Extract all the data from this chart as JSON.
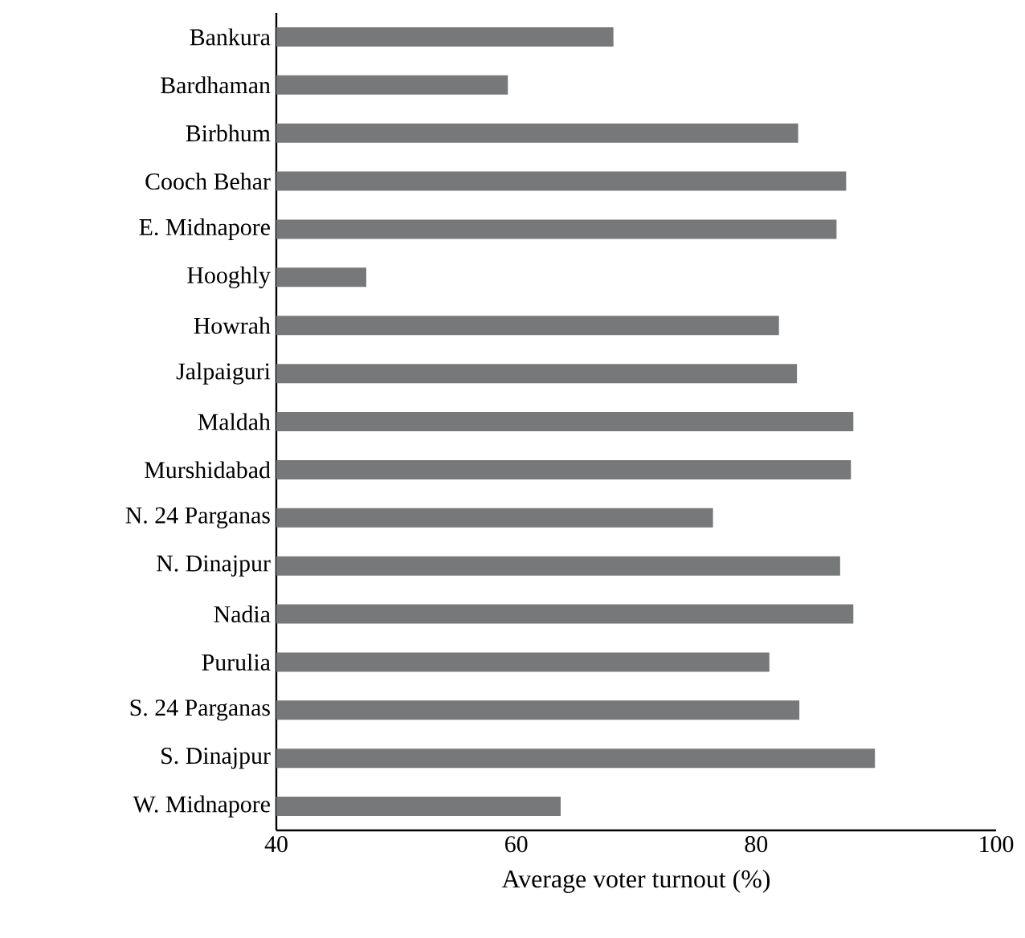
{
  "chart_data": {
    "type": "bar",
    "orientation": "horizontal",
    "xlabel": "Average voter turnout (%)",
    "categories": [
      "Bankura",
      "Bardhaman",
      "Birbhum",
      "Cooch Behar",
      "E. Midnapore",
      "Hooghly",
      "Howrah",
      "Jalpaiguri",
      "Maldah",
      "Murshidabad",
      "N. 24 Parganas",
      "N. Dinajpur",
      "Nadia",
      "Purulia",
      "S. 24 Parganas",
      "S. Dinajpur",
      "W. Midnapore"
    ],
    "values": [
      68.1,
      59.3,
      83.5,
      87.5,
      86.7,
      47.5,
      81.9,
      83.4,
      88.1,
      87.9,
      76.4,
      87.0,
      88.1,
      81.1,
      83.6,
      89.9,
      63.7
    ],
    "color": "#77787a",
    "xlim": [
      40,
      100
    ],
    "xticks": [
      40,
      60,
      80,
      100
    ],
    "grid": false
  }
}
